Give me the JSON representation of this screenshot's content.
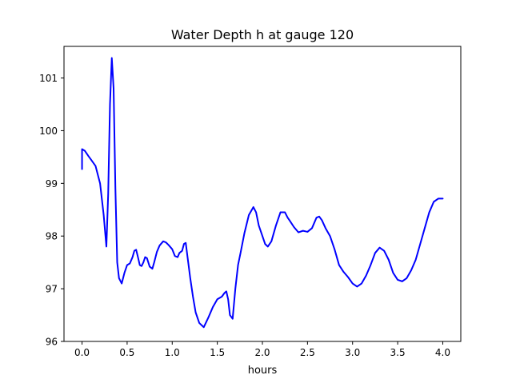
{
  "chart_data": {
    "type": "line",
    "title": "Water Depth h at gauge 120",
    "xlabel": "hours",
    "ylabel": "",
    "xlim": [
      -0.2,
      4.2
    ],
    "ylim": [
      96.0,
      101.6
    ],
    "xticks": [
      0.0,
      0.5,
      1.0,
      1.5,
      2.0,
      2.5,
      3.0,
      3.5,
      4.0
    ],
    "xtick_labels": [
      "0.0",
      "0.5",
      "1.0",
      "1.5",
      "2.0",
      "2.5",
      "3.0",
      "3.5",
      "4.0"
    ],
    "yticks": [
      96,
      97,
      98,
      99,
      100,
      101
    ],
    "ytick_labels": [
      "96",
      "97",
      "98",
      "99",
      "100",
      "101"
    ],
    "grid": false,
    "legend": "none",
    "series": [
      {
        "color": "#0000ff",
        "x": [
          0.0,
          0.0,
          0.03,
          0.07,
          0.1,
          0.15,
          0.2,
          0.24,
          0.27,
          0.29,
          0.31,
          0.33,
          0.35,
          0.37,
          0.39,
          0.41,
          0.44,
          0.47,
          0.5,
          0.53,
          0.56,
          0.58,
          0.6,
          0.62,
          0.64,
          0.66,
          0.68,
          0.7,
          0.72,
          0.75,
          0.78,
          0.8,
          0.83,
          0.86,
          0.9,
          0.93,
          0.96,
          1.0,
          1.03,
          1.06,
          1.08,
          1.11,
          1.13,
          1.15,
          1.17,
          1.2,
          1.23,
          1.26,
          1.3,
          1.35,
          1.4,
          1.45,
          1.5,
          1.55,
          1.58,
          1.6,
          1.62,
          1.64,
          1.67,
          1.7,
          1.73,
          1.76,
          1.8,
          1.85,
          1.9,
          1.93,
          1.96,
          2.0,
          2.03,
          2.06,
          2.1,
          2.15,
          2.2,
          2.25,
          2.28,
          2.3,
          2.35,
          2.4,
          2.45,
          2.5,
          2.55,
          2.6,
          2.63,
          2.66,
          2.7,
          2.75,
          2.8,
          2.85,
          2.9,
          2.95,
          3.0,
          3.05,
          3.1,
          3.15,
          3.2,
          3.25,
          3.3,
          3.35,
          3.4,
          3.45,
          3.5,
          3.55,
          3.6,
          3.65,
          3.7,
          3.75,
          3.8,
          3.85,
          3.9,
          3.95,
          4.0
        ],
        "y": [
          99.27,
          99.65,
          99.62,
          99.52,
          99.45,
          99.33,
          99.0,
          98.4,
          97.8,
          98.8,
          100.5,
          101.38,
          100.8,
          98.9,
          97.5,
          97.2,
          97.1,
          97.3,
          97.45,
          97.48,
          97.6,
          97.72,
          97.74,
          97.6,
          97.45,
          97.43,
          97.5,
          97.6,
          97.58,
          97.42,
          97.38,
          97.5,
          97.7,
          97.82,
          97.9,
          97.88,
          97.83,
          97.75,
          97.62,
          97.6,
          97.68,
          97.72,
          97.85,
          97.87,
          97.6,
          97.2,
          96.85,
          96.55,
          96.35,
          96.27,
          96.45,
          96.65,
          96.8,
          96.85,
          96.92,
          96.95,
          96.8,
          96.5,
          96.43,
          97.0,
          97.45,
          97.7,
          98.05,
          98.4,
          98.55,
          98.45,
          98.2,
          98.0,
          97.85,
          97.8,
          97.9,
          98.2,
          98.45,
          98.45,
          98.35,
          98.3,
          98.17,
          98.07,
          98.1,
          98.08,
          98.15,
          98.35,
          98.37,
          98.3,
          98.15,
          98.0,
          97.75,
          97.45,
          97.32,
          97.22,
          97.1,
          97.04,
          97.1,
          97.25,
          97.45,
          97.68,
          97.78,
          97.72,
          97.55,
          97.3,
          97.17,
          97.14,
          97.2,
          97.35,
          97.55,
          97.85,
          98.15,
          98.45,
          98.65,
          98.71,
          98.71
        ]
      }
    ]
  }
}
